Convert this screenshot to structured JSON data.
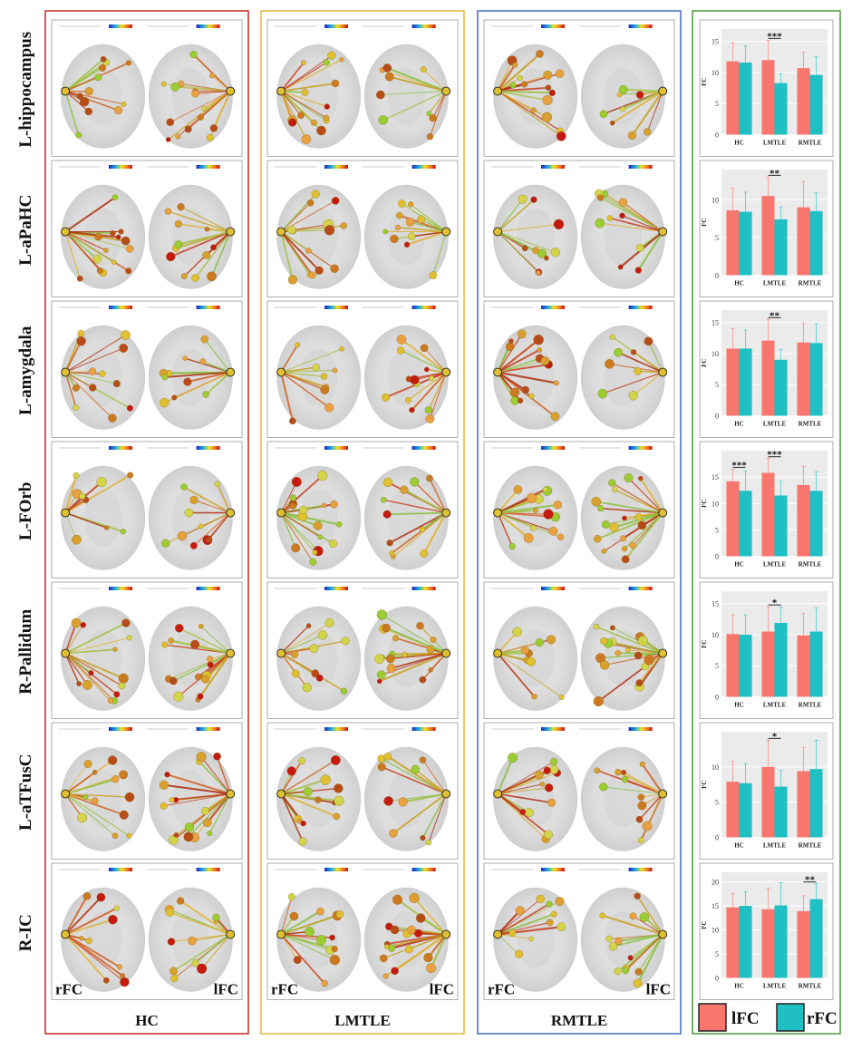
{
  "figure": {
    "row_labels": [
      "L-hippocampus",
      "L-aPaHC",
      "L-amygdala",
      "L-FOrb",
      "R-Pallidum",
      "L-aTFusC",
      "R-IC"
    ],
    "group_labels": [
      "HC",
      "LMTLE",
      "RMTLE"
    ],
    "brain_corner_labels": {
      "left": "rFC",
      "right": "lFC"
    },
    "colors": {
      "HC_border": "#c0392b",
      "LMTLE_border": "#e8b84a",
      "RMTLE_border": "#4a78c2",
      "chart_border": "#5a9e46",
      "lFC": "#f8766d",
      "rFC": "#1fbfc4"
    }
  },
  "legend": {
    "items": [
      {
        "label": "lFC",
        "color": "#f8766d"
      },
      {
        "label": "rFC",
        "color": "#1fbfc4"
      }
    ]
  },
  "chart_data": [
    {
      "type": "bar",
      "categories": [
        "HC",
        "LMTLE",
        "RMTLE"
      ],
      "ylabel": "FC",
      "ylim": [
        0,
        17
      ],
      "yticks": [
        0,
        5,
        10,
        15
      ],
      "series": [
        {
          "name": "lFC",
          "values": [
            11.8,
            12.0,
            10.7
          ]
        },
        {
          "name": "rFC",
          "values": [
            11.6,
            8.3,
            9.6
          ]
        }
      ],
      "error_top": {
        "lFC": [
          14.8,
          15.2,
          13.3
        ],
        "rFC": [
          14.3,
          9.8,
          12.6
        ]
      },
      "annotations": [
        {
          "category": "LMTLE",
          "text": "***"
        }
      ]
    },
    {
      "type": "bar",
      "categories": [
        "HC",
        "LMTLE",
        "RMTLE"
      ],
      "ylabel": "FC",
      "ylim": [
        0,
        14
      ],
      "yticks": [
        0,
        5,
        10
      ],
      "series": [
        {
          "name": "lFC",
          "values": [
            8.6,
            10.5,
            9.0
          ]
        },
        {
          "name": "rFC",
          "values": [
            8.4,
            7.4,
            8.5
          ]
        }
      ],
      "error_top": {
        "lFC": [
          11.5,
          13.0,
          12.4
        ],
        "rFC": [
          11.0,
          9.0,
          10.9
        ]
      },
      "annotations": [
        {
          "category": "LMTLE",
          "text": "**"
        }
      ]
    },
    {
      "type": "bar",
      "categories": [
        "HC",
        "LMTLE",
        "RMTLE"
      ],
      "ylabel": "FC",
      "ylim": [
        0,
        17
      ],
      "yticks": [
        0,
        5,
        10,
        15
      ],
      "series": [
        {
          "name": "lFC",
          "values": [
            10.8,
            12.1,
            11.8
          ]
        },
        {
          "name": "rFC",
          "values": [
            10.8,
            9.0,
            11.7
          ]
        }
      ],
      "error_top": {
        "lFC": [
          14.0,
          15.5,
          14.9
        ],
        "rFC": [
          13.8,
          10.7,
          14.8
        ]
      },
      "annotations": [
        {
          "category": "LMTLE",
          "text": "**"
        }
      ]
    },
    {
      "type": "bar",
      "categories": [
        "HC",
        "LMTLE",
        "RMTLE"
      ],
      "ylabel": "FC",
      "ylim": [
        0,
        20
      ],
      "yticks": [
        0,
        5,
        10,
        15
      ],
      "series": [
        {
          "name": "lFC",
          "values": [
            14.2,
            15.8,
            13.5
          ]
        },
        {
          "name": "rFC",
          "values": [
            12.4,
            11.5,
            12.4
          ]
        }
      ],
      "error_top": {
        "lFC": [
          16.5,
          18.5,
          17.0
        ],
        "rFC": [
          16.2,
          14.2,
          16.0
        ]
      },
      "annotations": [
        {
          "category": "HC",
          "text": "***"
        },
        {
          "category": "LMTLE",
          "text": "***"
        }
      ]
    },
    {
      "type": "bar",
      "categories": [
        "HC",
        "LMTLE",
        "RMTLE"
      ],
      "ylabel": "FC",
      "ylim": [
        0,
        17
      ],
      "yticks": [
        0,
        5,
        10,
        15
      ],
      "series": [
        {
          "name": "lFC",
          "values": [
            10.1,
            10.5,
            9.9
          ]
        },
        {
          "name": "rFC",
          "values": [
            10.0,
            11.9,
            10.5
          ]
        }
      ],
      "error_top": {
        "lFC": [
          13.2,
          14.5,
          13.4
        ],
        "rFC": [
          13.2,
          14.5,
          14.3
        ]
      },
      "annotations": [
        {
          "category": "LMTLE",
          "text": "*"
        }
      ]
    },
    {
      "type": "bar",
      "categories": [
        "HC",
        "LMTLE",
        "RMTLE"
      ],
      "ylabel": "FC",
      "ylim": [
        0,
        15
      ],
      "yticks": [
        0,
        5,
        10
      ],
      "series": [
        {
          "name": "lFC",
          "values": [
            7.9,
            10.0,
            9.4
          ]
        },
        {
          "name": "rFC",
          "values": [
            7.7,
            7.2,
            9.7
          ]
        }
      ],
      "error_top": {
        "lFC": [
          10.8,
          13.8,
          12.8
        ],
        "rFC": [
          10.5,
          9.5,
          13.8
        ]
      },
      "annotations": [
        {
          "category": "LMTLE",
          "text": "*"
        }
      ]
    },
    {
      "type": "bar",
      "categories": [
        "HC",
        "LMTLE",
        "RMTLE"
      ],
      "ylabel": "FC",
      "ylim": [
        0,
        22
      ],
      "yticks": [
        0,
        5,
        10,
        15,
        20
      ],
      "series": [
        {
          "name": "lFC",
          "values": [
            14.7,
            14.3,
            13.9
          ]
        },
        {
          "name": "rFC",
          "values": [
            15.0,
            15.1,
            16.4
          ]
        }
      ],
      "error_top": {
        "lFC": [
          17.6,
          18.7,
          17.1
        ],
        "rFC": [
          18.0,
          19.8,
          19.6
        ]
      },
      "annotations": [
        {
          "category": "RMTLE",
          "text": "**"
        }
      ]
    }
  ]
}
